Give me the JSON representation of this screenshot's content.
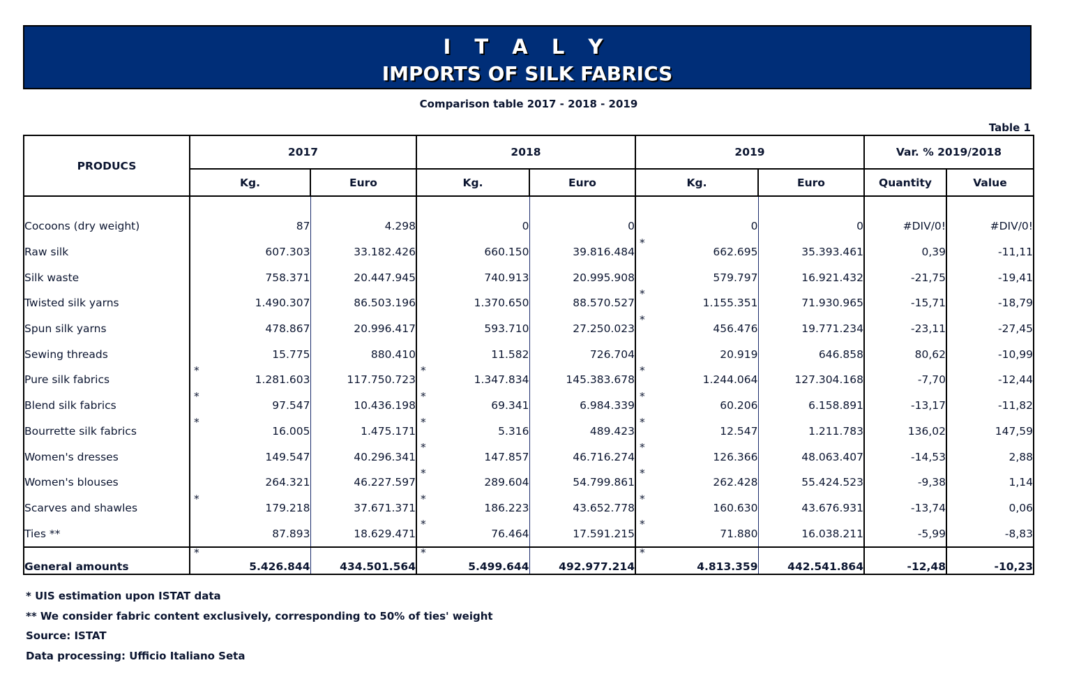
{
  "banner": {
    "country": "I T A L Y",
    "title": "IMPORTS OF SILK FABRICS",
    "bg_color": "#002e78"
  },
  "subtitle": "Comparison table  2017 - 2018 - 2019",
  "table_label": "Table 1",
  "header": {
    "products": "PRODUCS",
    "years": [
      "2017",
      "2018",
      "2019"
    ],
    "variation": "Var. %  2019/2018",
    "kg": "Kg.",
    "euro": "Euro",
    "quantity": "Quantity",
    "value": "Value"
  },
  "rows": [
    {
      "name": "Cocoons (dry weight)",
      "kg2017": "87",
      "eu2017": "4.298",
      "kg2018": "0",
      "eu2018": "0",
      "kg2019": "0",
      "eu2019": "0",
      "qty": "#DIV/0!",
      "val": "#DIV/0!",
      "s17": "",
      "s18": "",
      "s19": ""
    },
    {
      "name": "Raw silk",
      "kg2017": "607.303",
      "eu2017": "33.182.426",
      "kg2018": "660.150",
      "eu2018": "39.816.484",
      "kg2019": "662.695",
      "eu2019": "35.393.461",
      "qty": "0,39",
      "val": "-11,11",
      "s17": "",
      "s18": "",
      "s19": "*"
    },
    {
      "name": "Silk waste",
      "kg2017": "758.371",
      "eu2017": "20.447.945",
      "kg2018": "740.913",
      "eu2018": "20.995.908",
      "kg2019": "579.797",
      "eu2019": "16.921.432",
      "qty": "-21,75",
      "val": "-19,41",
      "s17": "",
      "s18": "",
      "s19": ""
    },
    {
      "name": "Twisted silk yarns",
      "kg2017": "1.490.307",
      "eu2017": "86.503.196",
      "kg2018": "1.370.650",
      "eu2018": "88.570.527",
      "kg2019": "1.155.351",
      "eu2019": "71.930.965",
      "qty": "-15,71",
      "val": "-18,79",
      "s17": "",
      "s18": "",
      "s19": "*"
    },
    {
      "name": "Spun silk yarns",
      "kg2017": "478.867",
      "eu2017": "20.996.417",
      "kg2018": "593.710",
      "eu2018": "27.250.023",
      "kg2019": "456.476",
      "eu2019": "19.771.234",
      "qty": "-23,11",
      "val": "-27,45",
      "s17": "",
      "s18": "",
      "s19": "*"
    },
    {
      "name": "Sewing threads",
      "kg2017": "15.775",
      "eu2017": "880.410",
      "kg2018": "11.582",
      "eu2018": "726.704",
      "kg2019": "20.919",
      "eu2019": "646.858",
      "qty": "80,62",
      "val": "-10,99",
      "s17": "",
      "s18": "",
      "s19": ""
    },
    {
      "name": "Pure silk fabrics",
      "kg2017": "1.281.603",
      "eu2017": "117.750.723",
      "kg2018": "1.347.834",
      "eu2018": "145.383.678",
      "kg2019": "1.244.064",
      "eu2019": "127.304.168",
      "qty": "-7,70",
      "val": "-12,44",
      "s17": "*",
      "s18": "*",
      "s19": "*"
    },
    {
      "name": "Blend silk fabrics",
      "kg2017": "97.547",
      "eu2017": "10.436.198",
      "kg2018": "69.341",
      "eu2018": "6.984.339",
      "kg2019": "60.206",
      "eu2019": "6.158.891",
      "qty": "-13,17",
      "val": "-11,82",
      "s17": "*",
      "s18": "*",
      "s19": "*"
    },
    {
      "name": "Bourrette silk fabrics",
      "kg2017": "16.005",
      "eu2017": "1.475.171",
      "kg2018": "5.316",
      "eu2018": "489.423",
      "kg2019": "12.547",
      "eu2019": "1.211.783",
      "qty": "136,02",
      "val": "147,59",
      "s17": "*",
      "s18": "*",
      "s19": "*"
    },
    {
      "name": "Women's dresses",
      "kg2017": "149.547",
      "eu2017": "40.296.341",
      "kg2018": "147.857",
      "eu2018": "46.716.274",
      "kg2019": "126.366",
      "eu2019": "48.063.407",
      "qty": "-14,53",
      "val": "2,88",
      "s17": "",
      "s18": "*",
      "s19": "*"
    },
    {
      "name": "Women's blouses",
      "kg2017": "264.321",
      "eu2017": "46.227.597",
      "kg2018": "289.604",
      "eu2018": "54.799.861",
      "kg2019": "262.428",
      "eu2019": "55.424.523",
      "qty": "-9,38",
      "val": "1,14",
      "s17": "",
      "s18": "*",
      "s19": "*"
    },
    {
      "name": "Scarves and shawles",
      "kg2017": "179.218",
      "eu2017": "37.671.371",
      "kg2018": "186.223",
      "eu2018": "43.652.778",
      "kg2019": "160.630",
      "eu2019": "43.676.931",
      "qty": "-13,74",
      "val": "0,06",
      "s17": "*",
      "s18": "*",
      "s19": "*"
    },
    {
      "name": "Ties  **",
      "kg2017": "87.893",
      "eu2017": "18.629.471",
      "kg2018": "76.464",
      "eu2018": "17.591.215",
      "kg2019": "71.880",
      "eu2019": "16.038.211",
      "qty": "-5,99",
      "val": "-8,83",
      "s17": "",
      "s18": "*",
      "s19": "*"
    }
  ],
  "total": {
    "name": "General amounts",
    "kg2017": "5.426.844",
    "eu2017": "434.501.564",
    "kg2018": "5.499.644",
    "eu2018": "492.977.214",
    "kg2019": "4.813.359",
    "eu2019": "442.541.864",
    "qty": "-12,48",
    "val": "-10,23",
    "s17": "*",
    "s18": "*",
    "s19": "*"
  },
  "notes": [
    "* UIS estimation upon ISTAT data",
    "** We consider fabric content exclusively, corresponding to 50% of ties' weight",
    "Source: ISTAT",
    "Data processing: Ufficio Italiano Seta"
  ]
}
